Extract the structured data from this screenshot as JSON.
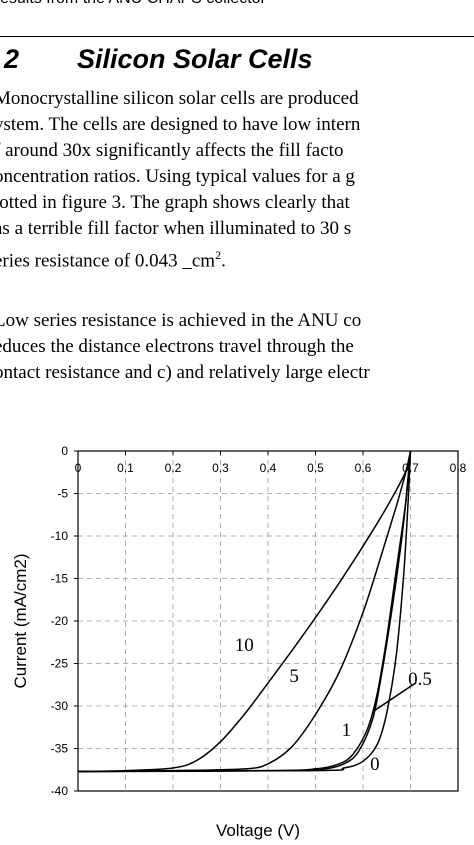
{
  "page": {
    "header_fragment": "esults from the ANU CHAPS collector",
    "section": {
      "number": "2",
      "title": "Silicon Solar Cells"
    },
    "paragraph1": [
      "Monocrystalline silicon solar cells are produced",
      "ystem.  The cells are designed to have low intern",
      "f around 30x significantly affects the fill facto",
      "oncentration ratios.  Using typical values for a g",
      "lotted in figure 3. The graph shows clearly that",
      "as a terrible fill factor when illuminated to 30 s",
      "eries resistance of 0.043 _cm"
    ],
    "superscript": "2",
    "trailing_period": ".",
    "paragraph2": [
      "Low series resistance is achieved in the ANU co",
      "educes the distance electrons travel through the",
      "ontact resistance and c) and relatively large electr"
    ]
  },
  "chart_data": {
    "type": "line",
    "xlabel": "Voltage (V)",
    "ylabel": "Current (mA/cm2)",
    "xlim": [
      0,
      0.8
    ],
    "ylim": [
      -40,
      0
    ],
    "x_ticks": [
      "0",
      "0.1",
      "0.2",
      "0.3",
      "0.4",
      "0.5",
      "0.6",
      "0.7",
      "0.8"
    ],
    "y_ticks": [
      "0",
      "-5",
      "-10",
      "-15",
      "-20",
      "-25",
      "-30",
      "-35",
      "-40"
    ],
    "grid": true,
    "series": [
      {
        "name": "10",
        "points": [
          [
            0,
            -37.7
          ],
          [
            0.1,
            -37.6
          ],
          [
            0.2,
            -37.3
          ],
          [
            0.25,
            -36.4
          ],
          [
            0.3,
            -34.2
          ],
          [
            0.35,
            -31
          ],
          [
            0.4,
            -27.3
          ],
          [
            0.45,
            -23.5
          ],
          [
            0.5,
            -19.6
          ],
          [
            0.55,
            -15.5
          ],
          [
            0.6,
            -11.2
          ],
          [
            0.65,
            -6.6
          ],
          [
            0.69,
            -2.4
          ],
          [
            0.7,
            0
          ]
        ]
      },
      {
        "name": "5",
        "points": [
          [
            0,
            -37.7
          ],
          [
            0.2,
            -37.6
          ],
          [
            0.35,
            -37.4
          ],
          [
            0.4,
            -36.8
          ],
          [
            0.45,
            -34.8
          ],
          [
            0.5,
            -31
          ],
          [
            0.55,
            -26
          ],
          [
            0.6,
            -19
          ],
          [
            0.64,
            -12
          ],
          [
            0.67,
            -6.5
          ],
          [
            0.69,
            -2.5
          ],
          [
            0.7,
            0
          ]
        ]
      },
      {
        "name": "1",
        "points": [
          [
            0,
            -37.7
          ],
          [
            0.4,
            -37.6
          ],
          [
            0.5,
            -37.4
          ],
          [
            0.55,
            -36.8
          ],
          [
            0.58,
            -35.6
          ],
          [
            0.61,
            -32.6
          ],
          [
            0.63,
            -28.5
          ],
          [
            0.65,
            -22
          ],
          [
            0.67,
            -14
          ],
          [
            0.69,
            -6
          ],
          [
            0.7,
            0
          ]
        ]
      },
      {
        "name": "0.5",
        "points": [
          [
            0,
            -37.7
          ],
          [
            0.45,
            -37.6
          ],
          [
            0.52,
            -37.4
          ],
          [
            0.56,
            -36.8
          ],
          [
            0.59,
            -35.4
          ],
          [
            0.62,
            -31.6
          ],
          [
            0.64,
            -26
          ],
          [
            0.66,
            -19
          ],
          [
            0.68,
            -11
          ],
          [
            0.69,
            -6
          ],
          [
            0.7,
            0
          ]
        ]
      },
      {
        "name": "0",
        "points": [
          [
            0,
            -37.7
          ],
          [
            0.5,
            -37.6
          ],
          [
            0.56,
            -37.3
          ],
          [
            0.6,
            -36.5
          ],
          [
            0.63,
            -34.5
          ],
          [
            0.65,
            -30.8
          ],
          [
            0.67,
            -24
          ],
          [
            0.685,
            -15
          ],
          [
            0.695,
            -6
          ],
          [
            0.7,
            0
          ]
        ]
      }
    ],
    "annotations": [
      {
        "text": "10",
        "x": 0.35,
        "y": -23.5
      },
      {
        "text": "5",
        "x": 0.455,
        "y": -27.2
      },
      {
        "text": "1",
        "x": 0.565,
        "y": -33.5
      },
      {
        "text": "0.5",
        "x": 0.72,
        "y": -27.5,
        "leader_to": [
          0.625,
          -30.5
        ]
      },
      {
        "text": "0",
        "x": 0.625,
        "y": -37.5
      }
    ]
  }
}
